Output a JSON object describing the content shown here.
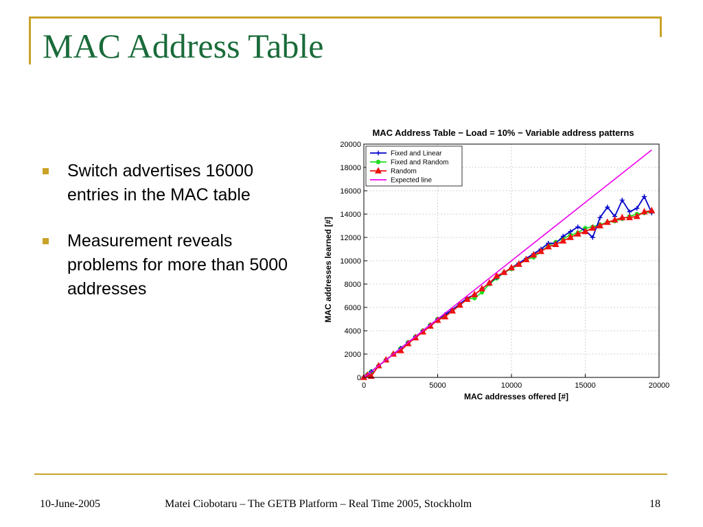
{
  "slide": {
    "title": "MAC Address Table",
    "bullets": [
      "Switch advertises 16000 entries in the MAC table",
      "Measurement reveals problems for more than 5000 addresses"
    ],
    "colors": {
      "title": "#1a6b3a",
      "accent": "#c9a227"
    }
  },
  "footer": {
    "date": "10-June-2005",
    "center": "Matei Ciobotaru – The GETB Platform – Real Time 2005, Stockholm",
    "page": "18"
  },
  "chart_data": {
    "type": "line",
    "title": "MAC Address Table − Load = 10% − Variable address patterns",
    "xlabel": "MAC addresses offered [#]",
    "ylabel": "MAC addresses learned [#]",
    "xlim": [
      0,
      20000
    ],
    "ylim": [
      0,
      20000
    ],
    "xticks": [
      0,
      5000,
      10000,
      15000,
      20000
    ],
    "yticks": [
      0,
      2000,
      4000,
      6000,
      8000,
      10000,
      12000,
      14000,
      16000,
      18000,
      20000
    ],
    "grid": true,
    "legend_position": "top-left",
    "series": [
      {
        "name": "Fixed and Linear",
        "color": "#0000cc",
        "marker": "plus",
        "points": [
          [
            0,
            0
          ],
          [
            250,
            250
          ],
          [
            500,
            500
          ],
          [
            1000,
            1000
          ],
          [
            1500,
            1500
          ],
          [
            2000,
            2000
          ],
          [
            2500,
            2500
          ],
          [
            3000,
            3000
          ],
          [
            3500,
            3500
          ],
          [
            4000,
            4000
          ],
          [
            4500,
            4500
          ],
          [
            5000,
            5000
          ],
          [
            5500,
            5400
          ],
          [
            6000,
            5800
          ],
          [
            6500,
            6300
          ],
          [
            7000,
            6800
          ],
          [
            7500,
            7100
          ],
          [
            8000,
            7600
          ],
          [
            8500,
            8100
          ],
          [
            9000,
            8600
          ],
          [
            9500,
            9000
          ],
          [
            10000,
            9400
          ],
          [
            10500,
            9800
          ],
          [
            11000,
            10200
          ],
          [
            11500,
            10600
          ],
          [
            12000,
            11000
          ],
          [
            12500,
            11500
          ],
          [
            13000,
            11500
          ],
          [
            13500,
            12100
          ],
          [
            14000,
            12500
          ],
          [
            14500,
            12900
          ],
          [
            15000,
            12600
          ],
          [
            15500,
            12000
          ],
          [
            16000,
            13700
          ],
          [
            16500,
            14600
          ],
          [
            17000,
            13800
          ],
          [
            17500,
            15200
          ],
          [
            18000,
            14200
          ],
          [
            18500,
            14500
          ],
          [
            19000,
            15500
          ],
          [
            19500,
            14100
          ]
        ]
      },
      {
        "name": "Fixed and Random",
        "color": "#22dd22",
        "marker": "dot",
        "points": [
          [
            0,
            0
          ],
          [
            250,
            250
          ],
          [
            500,
            500
          ],
          [
            1000,
            1000
          ],
          [
            1500,
            1500
          ],
          [
            2000,
            2000
          ],
          [
            2500,
            2500
          ],
          [
            3000,
            3000
          ],
          [
            3500,
            3500
          ],
          [
            4000,
            4000
          ],
          [
            4500,
            4500
          ],
          [
            5000,
            5000
          ],
          [
            5500,
            5300
          ],
          [
            6000,
            5700
          ],
          [
            6500,
            6200
          ],
          [
            7000,
            6700
          ],
          [
            7500,
            6800
          ],
          [
            8000,
            7300
          ],
          [
            8500,
            8000
          ],
          [
            9000,
            8500
          ],
          [
            9500,
            9000
          ],
          [
            10000,
            9300
          ],
          [
            10500,
            9700
          ],
          [
            11000,
            10100
          ],
          [
            11500,
            10300
          ],
          [
            12000,
            10800
          ],
          [
            12500,
            11300
          ],
          [
            13000,
            11600
          ],
          [
            13500,
            11900
          ],
          [
            14000,
            12200
          ],
          [
            14500,
            12400
          ],
          [
            15000,
            12800
          ],
          [
            15500,
            12900
          ],
          [
            16000,
            13100
          ],
          [
            16500,
            13300
          ],
          [
            17000,
            13400
          ],
          [
            17500,
            13600
          ],
          [
            18000,
            13800
          ],
          [
            18500,
            14000
          ],
          [
            19000,
            14100
          ],
          [
            19500,
            14200
          ]
        ]
      },
      {
        "name": "Random",
        "color": "#ee1111",
        "marker": "triangle",
        "points": [
          [
            0,
            0
          ],
          [
            250,
            200
          ],
          [
            500,
            100
          ],
          [
            1000,
            1000
          ],
          [
            1500,
            1500
          ],
          [
            2000,
            2000
          ],
          [
            2500,
            2300
          ],
          [
            3000,
            2900
          ],
          [
            3500,
            3400
          ],
          [
            4000,
            3900
          ],
          [
            4500,
            4400
          ],
          [
            5000,
            4900
          ],
          [
            5500,
            5200
          ],
          [
            6000,
            5700
          ],
          [
            6500,
            6200
          ],
          [
            7000,
            6700
          ],
          [
            7500,
            7100
          ],
          [
            8000,
            7600
          ],
          [
            8500,
            8100
          ],
          [
            9000,
            8700
          ],
          [
            9500,
            9000
          ],
          [
            10000,
            9400
          ],
          [
            10500,
            9700
          ],
          [
            11000,
            10100
          ],
          [
            11500,
            10500
          ],
          [
            12000,
            10800
          ],
          [
            12500,
            11200
          ],
          [
            13000,
            11400
          ],
          [
            13500,
            11700
          ],
          [
            14000,
            12000
          ],
          [
            14500,
            12300
          ],
          [
            15000,
            12500
          ],
          [
            15500,
            12800
          ],
          [
            16000,
            13000
          ],
          [
            16500,
            13300
          ],
          [
            17000,
            13500
          ],
          [
            17500,
            13700
          ],
          [
            18000,
            13700
          ],
          [
            18500,
            13800
          ],
          [
            19000,
            14200
          ],
          [
            19500,
            14300
          ]
        ]
      },
      {
        "name": "Expected line",
        "color": "#ee00ee",
        "marker": "none",
        "points": [
          [
            0,
            0
          ],
          [
            19500,
            19500
          ]
        ]
      }
    ]
  }
}
